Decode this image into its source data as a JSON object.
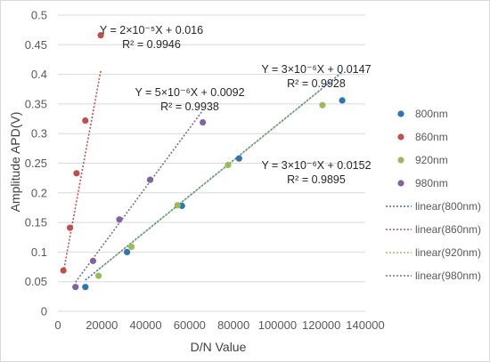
{
  "chart_data": {
    "type": "scatter",
    "xlabel": "D/N Value",
    "ylabel": "Amplitude APD(V)",
    "xlim": [
      0,
      140000
    ],
    "ylim": [
      0,
      0.5
    ],
    "xticks": [
      "0",
      "20000",
      "40000",
      "60000",
      "80000",
      "100000",
      "120000",
      "140000"
    ],
    "yticks": [
      "0",
      "0.05",
      "0.1",
      "0.15",
      "0.2",
      "0.25",
      "0.3",
      "0.35",
      "0.4",
      "0.45",
      "0.5"
    ],
    "grid": "horizontal",
    "legend_position": "right",
    "series": [
      {
        "name": "800nm",
        "color": "#2e75b6",
        "points": [
          [
            12500,
            0.041
          ],
          [
            31500,
            0.1
          ],
          [
            56500,
            0.178
          ],
          [
            82500,
            0.258
          ],
          [
            129500,
            0.356
          ]
        ]
      },
      {
        "name": "860nm",
        "color": "#c0504d",
        "points": [
          [
            2500,
            0.069
          ],
          [
            5500,
            0.141
          ],
          [
            8500,
            0.233
          ],
          [
            12500,
            0.322
          ],
          [
            19500,
            0.466
          ]
        ]
      },
      {
        "name": "920nm",
        "color": "#9bbb59",
        "points": [
          [
            18500,
            0.06
          ],
          [
            33500,
            0.109
          ],
          [
            54500,
            0.179
          ],
          [
            77500,
            0.247
          ],
          [
            120500,
            0.348
          ]
        ]
      },
      {
        "name": "980nm",
        "color": "#8064a2",
        "points": [
          [
            8000,
            0.041
          ],
          [
            16000,
            0.085
          ],
          [
            28000,
            0.155
          ],
          [
            42000,
            0.222
          ],
          [
            66000,
            0.319
          ]
        ]
      }
    ],
    "trendlines": [
      {
        "name": "linear(800nm)",
        "color": "#2e75b6",
        "x": [
          12500,
          129500
        ],
        "y": [
          0.0527,
          0.4037
        ],
        "equation": "Y = 3×10⁻⁶X + 0.0152",
        "r2": "R² = 0.9895"
      },
      {
        "name": "linear(860nm)",
        "color": "#c0504d",
        "x": [
          2500,
          19500
        ],
        "y": [
          0.066,
          0.406
        ],
        "equation": "Y = 2×10⁻⁵X + 0.016",
        "r2": "R² = 0.9946"
      },
      {
        "name": "linear(920nm)",
        "color": "#9bbb59",
        "x": [
          18500,
          120500
        ],
        "y": [
          0.0702,
          0.3762
        ],
        "equation": "Y = 3×10⁻⁶X + 0.0147",
        "r2": "R² = 0.9928"
      },
      {
        "name": "linear(980nm)",
        "color": "#8064a2",
        "x": [
          8000,
          66000
        ],
        "y": [
          0.0492,
          0.3392
        ],
        "equation": "Y = 5×10⁻⁶X + 0.0092",
        "r2": "R² = 0.9938"
      }
    ]
  }
}
